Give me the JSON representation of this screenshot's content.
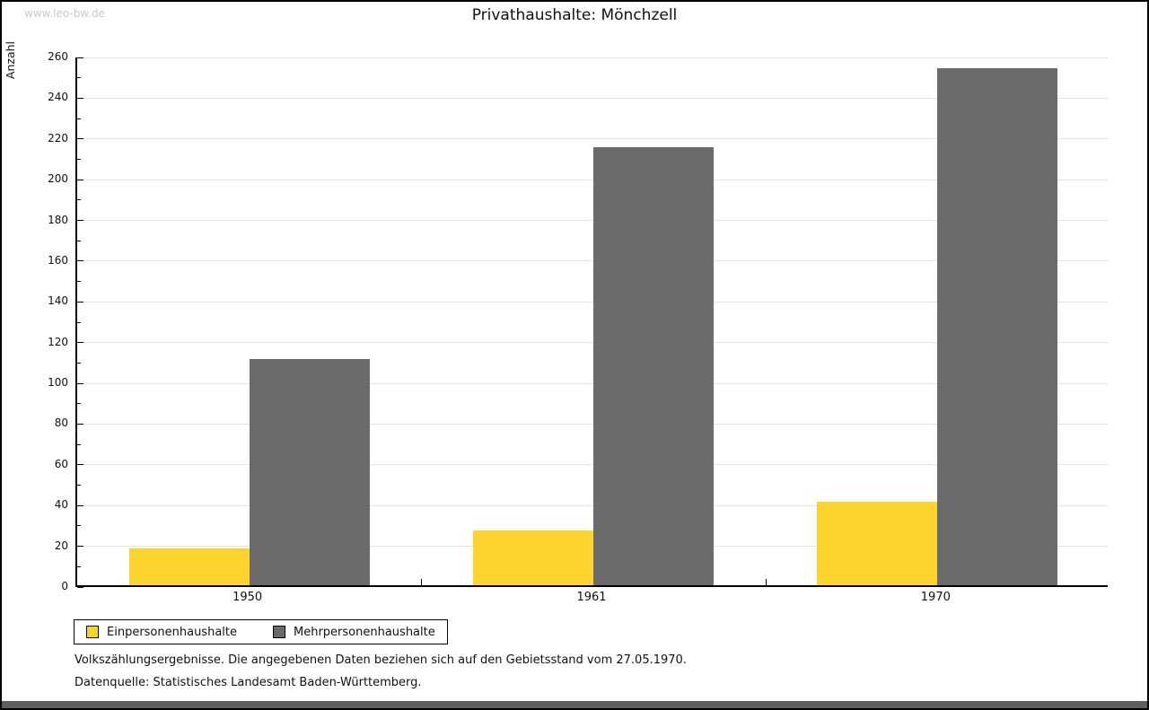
{
  "watermark": "www.leo-bw.de",
  "title": "Privathaushalte: Mönchzell",
  "footer": {
    "line1": "Volkszählungsergebnisse. Die angegebenen Daten beziehen sich auf den Gebietsstand vom 27.05.1970.",
    "line2": "Datenquelle: Statistisches Landesamt Baden-Württemberg."
  },
  "chart_data": {
    "type": "bar",
    "title": "Privathaushalte: Mönchzell",
    "categories": [
      "1950",
      "1961",
      "1970"
    ],
    "series": [
      {
        "name": "Einpersonenhaushalte",
        "color": "#FDD32E",
        "values": [
          18,
          27,
          41
        ]
      },
      {
        "name": "Mehrpersonenhaushalte",
        "color": "#6B6B6B",
        "values": [
          111,
          215,
          254
        ]
      }
    ],
    "xlabel": "",
    "ylabel": "Anzahl",
    "ylim": [
      0,
      260
    ],
    "ytick_step": 20,
    "ytick_minor_step": 10,
    "grid": "horizontal",
    "legend_position": "bottom-left"
  },
  "colors": {
    "grid": "#E3E3E3",
    "axis": "#000000",
    "watermark": "#C9C9C9",
    "bottom_bar": "#5F5F5F",
    "background": "#FFFFFF"
  }
}
